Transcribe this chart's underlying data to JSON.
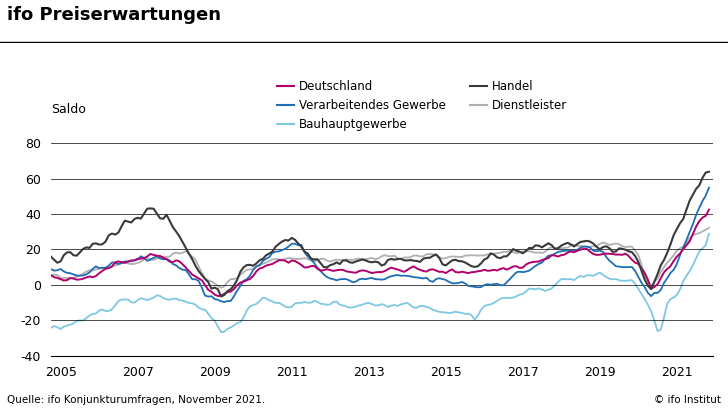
{
  "title": "ifo Preiserwartungen",
  "ylabel": "Saldo",
  "source": "Quelle: ifo Konjunkturumfragen, November 2021.",
  "copyright": "© ifo Institut",
  "ylim": [
    -40,
    80
  ],
  "yticks": [
    -40,
    -20,
    0,
    20,
    40,
    60,
    80
  ],
  "xlim_start": 2004.75,
  "xlim_end": 2021.95,
  "xticks": [
    2005,
    2007,
    2009,
    2011,
    2013,
    2015,
    2017,
    2019,
    2021
  ],
  "series": {
    "Deutschland": {
      "color": "#b0006d",
      "linewidth": 1.4,
      "zorder": 4
    },
    "Verarbeitendes Gewerbe": {
      "color": "#1f6eb5",
      "linewidth": 1.3,
      "zorder": 3
    },
    "Bauhauptgewerbe": {
      "color": "#7ec8e3",
      "linewidth": 1.3,
      "zorder": 2
    },
    "Handel": {
      "color": "#3a3a3a",
      "linewidth": 1.5,
      "zorder": 5
    },
    "Dienstleister": {
      "color": "#b0b0b0",
      "linewidth": 1.3,
      "zorder": 1
    }
  },
  "background_color": "#ffffff",
  "grid_color": "#000000",
  "title_fontsize": 13,
  "axis_fontsize": 9,
  "legend_fontsize": 8.5
}
